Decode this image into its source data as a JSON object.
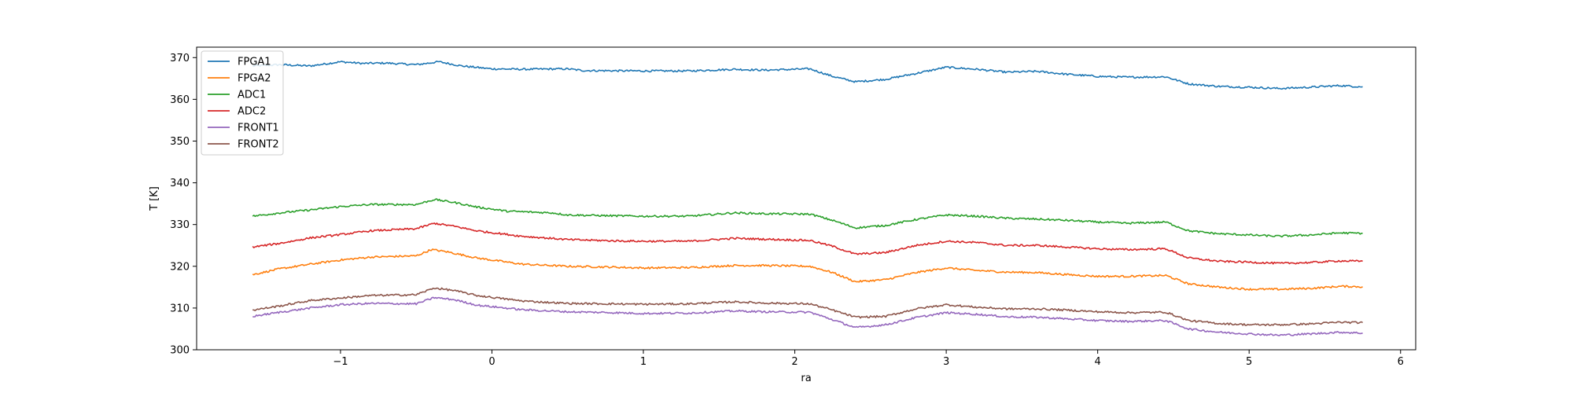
{
  "chart_data": {
    "type": "line",
    "xlabel": "ra",
    "ylabel": "T [K]",
    "xlim": [
      -1.95,
      6.1
    ],
    "ylim": [
      300,
      372.5
    ],
    "xticks": [
      -1,
      0,
      1,
      2,
      3,
      4,
      5,
      6
    ],
    "yticks": [
      300,
      310,
      320,
      330,
      340,
      350,
      360,
      370
    ],
    "grid": false,
    "legend_position": "upper-left",
    "series": [
      {
        "name": "FPGA1",
        "color": "#1f77b4",
        "points": [
          [
            -1.58,
            368.0
          ],
          [
            -1.4,
            368.3
          ],
          [
            -1.2,
            368.0
          ],
          [
            -1.0,
            369.0
          ],
          [
            -0.85,
            368.6
          ],
          [
            -0.7,
            368.7
          ],
          [
            -0.5,
            368.3
          ],
          [
            -0.35,
            369.0
          ],
          [
            -0.2,
            368.0
          ],
          [
            0.0,
            367.3
          ],
          [
            0.2,
            367.2
          ],
          [
            0.5,
            367.3
          ],
          [
            0.6,
            366.9
          ],
          [
            1.0,
            366.8
          ],
          [
            1.3,
            366.8
          ],
          [
            1.6,
            367.2
          ],
          [
            1.8,
            367.0
          ],
          [
            2.1,
            367.3
          ],
          [
            2.25,
            365.5
          ],
          [
            2.4,
            364.2
          ],
          [
            2.6,
            364.8
          ],
          [
            2.8,
            366.2
          ],
          [
            3.0,
            367.7
          ],
          [
            3.2,
            367.2
          ],
          [
            3.4,
            366.5
          ],
          [
            3.6,
            366.7
          ],
          [
            3.8,
            366.0
          ],
          [
            4.0,
            365.5
          ],
          [
            4.2,
            365.3
          ],
          [
            4.45,
            365.4
          ],
          [
            4.6,
            363.7
          ],
          [
            4.8,
            363.1
          ],
          [
            5.0,
            362.9
          ],
          [
            5.2,
            362.6
          ],
          [
            5.4,
            362.9
          ],
          [
            5.6,
            363.3
          ],
          [
            5.75,
            363.0
          ]
        ]
      },
      {
        "name": "FPGA2",
        "color": "#ff7f0e",
        "points": [
          [
            -1.58,
            318.0
          ],
          [
            -1.4,
            319.4
          ],
          [
            -1.2,
            320.5
          ],
          [
            -1.0,
            321.5
          ],
          [
            -0.8,
            322.2
          ],
          [
            -0.5,
            322.5
          ],
          [
            -0.4,
            324.0
          ],
          [
            -0.3,
            323.5
          ],
          [
            -0.1,
            322.0
          ],
          [
            0.2,
            320.5
          ],
          [
            0.5,
            320.0
          ],
          [
            0.8,
            319.8
          ],
          [
            1.0,
            319.6
          ],
          [
            1.3,
            319.7
          ],
          [
            1.6,
            320.2
          ],
          [
            1.8,
            320.2
          ],
          [
            2.1,
            320.0
          ],
          [
            2.25,
            318.5
          ],
          [
            2.4,
            316.3
          ],
          [
            2.6,
            316.8
          ],
          [
            2.8,
            318.5
          ],
          [
            3.0,
            319.6
          ],
          [
            3.2,
            319.0
          ],
          [
            3.4,
            318.6
          ],
          [
            3.6,
            318.5
          ],
          [
            3.8,
            318.0
          ],
          [
            4.0,
            317.6
          ],
          [
            4.2,
            317.6
          ],
          [
            4.45,
            317.8
          ],
          [
            4.6,
            315.8
          ],
          [
            4.8,
            315.0
          ],
          [
            5.0,
            314.5
          ],
          [
            5.2,
            314.5
          ],
          [
            5.4,
            314.7
          ],
          [
            5.6,
            315.2
          ],
          [
            5.75,
            315.1
          ]
        ]
      },
      {
        "name": "ADC1",
        "color": "#2ca02c",
        "points": [
          [
            -1.58,
            332.0
          ],
          [
            -1.4,
            332.8
          ],
          [
            -1.2,
            333.5
          ],
          [
            -1.0,
            334.3
          ],
          [
            -0.8,
            334.8
          ],
          [
            -0.5,
            334.8
          ],
          [
            -0.38,
            336.0
          ],
          [
            -0.25,
            335.3
          ],
          [
            -0.1,
            334.2
          ],
          [
            0.1,
            333.2
          ],
          [
            0.4,
            332.8
          ],
          [
            0.5,
            332.3
          ],
          [
            0.8,
            332.1
          ],
          [
            1.0,
            332.0
          ],
          [
            1.3,
            332.0
          ],
          [
            1.6,
            332.8
          ],
          [
            1.8,
            332.6
          ],
          [
            2.1,
            332.5
          ],
          [
            2.25,
            331.0
          ],
          [
            2.4,
            329.2
          ],
          [
            2.6,
            329.8
          ],
          [
            2.8,
            331.2
          ],
          [
            3.0,
            332.3
          ],
          [
            3.2,
            332.0
          ],
          [
            3.4,
            331.5
          ],
          [
            3.6,
            331.3
          ],
          [
            3.8,
            331.0
          ],
          [
            4.0,
            330.6
          ],
          [
            4.2,
            330.3
          ],
          [
            4.45,
            330.6
          ],
          [
            4.6,
            328.5
          ],
          [
            4.8,
            327.8
          ],
          [
            5.0,
            327.5
          ],
          [
            5.2,
            327.2
          ],
          [
            5.4,
            327.5
          ],
          [
            5.6,
            328.0
          ],
          [
            5.75,
            327.9
          ]
        ]
      },
      {
        "name": "ADC2",
        "color": "#d62728",
        "points": [
          [
            -1.58,
            324.6
          ],
          [
            -1.4,
            325.5
          ],
          [
            -1.2,
            326.8
          ],
          [
            -1.0,
            327.6
          ],
          [
            -0.8,
            328.5
          ],
          [
            -0.5,
            329.0
          ],
          [
            -0.38,
            330.3
          ],
          [
            -0.25,
            329.6
          ],
          [
            -0.1,
            328.5
          ],
          [
            0.2,
            327.2
          ],
          [
            0.5,
            326.4
          ],
          [
            0.8,
            326.1
          ],
          [
            1.0,
            326.0
          ],
          [
            1.3,
            326.0
          ],
          [
            1.6,
            326.7
          ],
          [
            1.8,
            326.5
          ],
          [
            2.1,
            326.2
          ],
          [
            2.25,
            324.8
          ],
          [
            2.4,
            322.9
          ],
          [
            2.6,
            323.3
          ],
          [
            2.8,
            325.0
          ],
          [
            3.0,
            326.0
          ],
          [
            3.2,
            325.7
          ],
          [
            3.4,
            325.0
          ],
          [
            3.6,
            325.0
          ],
          [
            3.8,
            324.6
          ],
          [
            4.0,
            324.2
          ],
          [
            4.2,
            324.0
          ],
          [
            4.45,
            324.2
          ],
          [
            4.6,
            322.0
          ],
          [
            4.8,
            321.2
          ],
          [
            5.0,
            321.0
          ],
          [
            5.2,
            320.7
          ],
          [
            5.4,
            320.9
          ],
          [
            5.6,
            321.3
          ],
          [
            5.75,
            321.2
          ]
        ]
      },
      {
        "name": "FRONT1",
        "color": "#9467bd",
        "points": [
          [
            -1.58,
            308.0
          ],
          [
            -1.4,
            309.0
          ],
          [
            -1.2,
            310.0
          ],
          [
            -1.0,
            310.8
          ],
          [
            -0.8,
            311.1
          ],
          [
            -0.5,
            311.0
          ],
          [
            -0.38,
            312.5
          ],
          [
            -0.25,
            312.0
          ],
          [
            -0.1,
            310.7
          ],
          [
            0.2,
            309.6
          ],
          [
            0.5,
            309.1
          ],
          [
            0.8,
            308.9
          ],
          [
            1.0,
            308.7
          ],
          [
            1.3,
            308.8
          ],
          [
            1.6,
            309.3
          ],
          [
            1.8,
            309.1
          ],
          [
            2.1,
            309.0
          ],
          [
            2.25,
            307.2
          ],
          [
            2.4,
            305.3
          ],
          [
            2.6,
            306.0
          ],
          [
            2.8,
            307.7
          ],
          [
            3.0,
            308.9
          ],
          [
            3.2,
            308.5
          ],
          [
            3.4,
            307.9
          ],
          [
            3.6,
            307.8
          ],
          [
            3.8,
            307.4
          ],
          [
            4.0,
            307.0
          ],
          [
            4.2,
            306.8
          ],
          [
            4.45,
            307.0
          ],
          [
            4.6,
            305.0
          ],
          [
            4.8,
            304.2
          ],
          [
            5.0,
            303.8
          ],
          [
            5.2,
            303.5
          ],
          [
            5.4,
            303.8
          ],
          [
            5.6,
            304.2
          ],
          [
            5.75,
            304.0
          ]
        ]
      },
      {
        "name": "FRONT2",
        "color": "#8c564b",
        "points": [
          [
            -1.58,
            309.5
          ],
          [
            -1.4,
            310.5
          ],
          [
            -1.2,
            311.8
          ],
          [
            -1.0,
            312.4
          ],
          [
            -0.8,
            313.0
          ],
          [
            -0.5,
            313.2
          ],
          [
            -0.38,
            314.8
          ],
          [
            -0.25,
            314.2
          ],
          [
            -0.1,
            313.0
          ],
          [
            0.2,
            311.7
          ],
          [
            0.5,
            311.1
          ],
          [
            0.8,
            311.0
          ],
          [
            1.0,
            310.9
          ],
          [
            1.3,
            311.0
          ],
          [
            1.6,
            311.5
          ],
          [
            1.8,
            311.2
          ],
          [
            2.1,
            311.0
          ],
          [
            2.25,
            309.5
          ],
          [
            2.4,
            307.8
          ],
          [
            2.6,
            308.0
          ],
          [
            2.8,
            309.8
          ],
          [
            3.0,
            310.8
          ],
          [
            3.2,
            310.2
          ],
          [
            3.4,
            309.8
          ],
          [
            3.6,
            309.8
          ],
          [
            3.8,
            309.5
          ],
          [
            4.0,
            309.1
          ],
          [
            4.2,
            308.9
          ],
          [
            4.45,
            309.0
          ],
          [
            4.6,
            307.0
          ],
          [
            4.8,
            306.3
          ],
          [
            5.0,
            306.0
          ],
          [
            5.2,
            306.0
          ],
          [
            5.4,
            306.2
          ],
          [
            5.6,
            306.6
          ],
          [
            5.75,
            306.5
          ]
        ]
      }
    ]
  }
}
